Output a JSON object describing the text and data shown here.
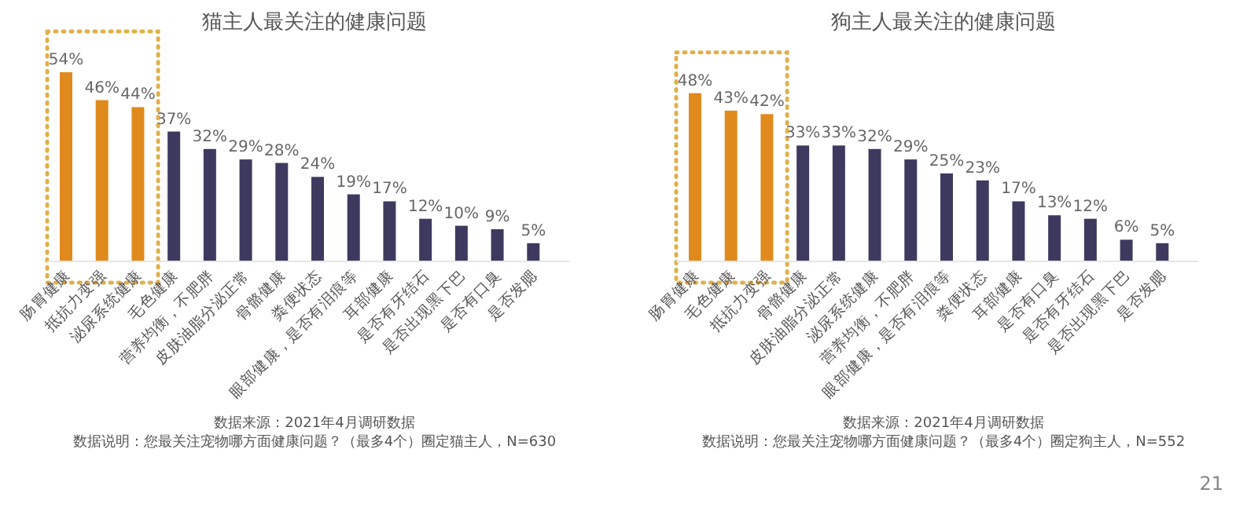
{
  "chart_data": [
    {
      "type": "bar",
      "title": "猫主人最关注的健康问题",
      "categories": [
        "肠胃健康",
        "抵抗力变强",
        "泌尿系统健康",
        "毛色健康",
        "营养均衡，不肥胖",
        "皮肤油脂分泌正常",
        "骨骼健康",
        "粪便状态",
        "眼部健康，是否有泪痕等",
        "耳部健康",
        "是否有牙结石",
        "是否出现黑下巴",
        "是否有口臭",
        "是否发腮"
      ],
      "values": [
        54,
        46,
        44,
        37,
        32,
        29,
        28,
        24,
        19,
        17,
        12,
        10,
        9,
        5
      ],
      "value_labels": [
        "54%",
        "46%",
        "44%",
        "37%",
        "32%",
        "29%",
        "28%",
        "24%",
        "19%",
        "17%",
        "12%",
        "10%",
        "9%",
        "5%"
      ],
      "colors": [
        "#e08a1e",
        "#e08a1e",
        "#e08a1e",
        "#3e3a5f",
        "#3e3a5f",
        "#3e3a5f",
        "#3e3a5f",
        "#3e3a5f",
        "#3e3a5f",
        "#3e3a5f",
        "#3e3a5f",
        "#3e3a5f",
        "#3e3a5f",
        "#3e3a5f"
      ],
      "annotations": [
        "数据来源：2021年4月调研数据",
        "数据说明：您最关注宠物哪方面健康问题？（最多4个）圈定猫主人，N=630"
      ]
    },
    {
      "type": "bar",
      "title": "狗主人最关注的健康问题",
      "categories": [
        "肠胃健康",
        "毛色健康",
        "抵抗力变强",
        "骨骼健康",
        "皮肤油脂分泌正常",
        "泌尿系统健康",
        "营养均衡，不肥胖",
        "眼部健康，是否有泪痕等",
        "粪便状态",
        "耳部健康",
        "是否有口臭",
        "是否有牙结石",
        "是否出现黑下巴",
        "是否发腮"
      ],
      "values": [
        48,
        43,
        42,
        33,
        33,
        32,
        29,
        25,
        23,
        17,
        13,
        12,
        6,
        5
      ],
      "value_labels": [
        "48%",
        "43%",
        "42%",
        "33%",
        "33%",
        "32%",
        "29%",
        "25%",
        "23%",
        "17%",
        "13%",
        "12%",
        "6%",
        "5%"
      ],
      "colors": [
        "#e08a1e",
        "#e08a1e",
        "#e08a1e",
        "#3e3a5f",
        "#3e3a5f",
        "#3e3a5f",
        "#3e3a5f",
        "#3e3a5f",
        "#3e3a5f",
        "#3e3a5f",
        "#3e3a5f",
        "#3e3a5f",
        "#3e3a5f",
        "#3e3a5f"
      ],
      "annotations": [
        "数据来源：2021年4月调研数据",
        "数据说明：您最关注宠物哪方面健康问题？（最多4个）圈定狗主人，N=552",
        "21"
      ]
    }
  ]
}
